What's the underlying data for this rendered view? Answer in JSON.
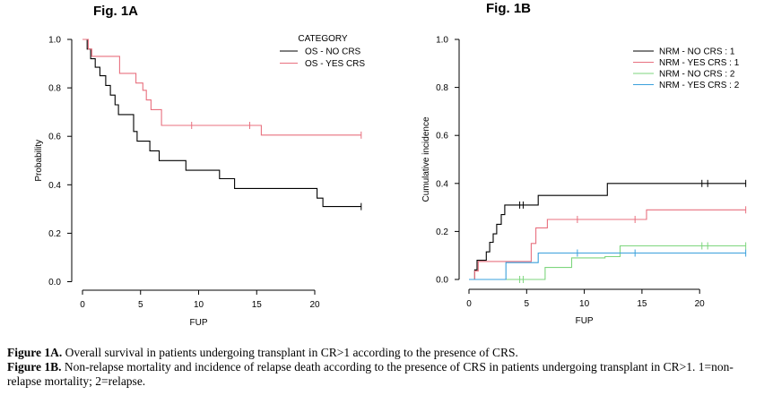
{
  "figures": {
    "fig1a_title": "Fig. 1A",
    "fig1b_title": "Fig. 1B"
  },
  "caption": {
    "line1_label": "Figure 1A.",
    "line1_text": " Overall survival in patients undergoing transplant in CR>1 according to the presence of CRS.",
    "line2_label": "Figure 1B.",
    "line2_text": " Non-relapse mortality and incidence of relapse death according to the presence of CRS in patients undergoing transplant in CR>1. 1=non-relapse mortality; 2=relapse."
  },
  "chart_data": [
    {
      "id": "fig1a",
      "type": "line",
      "step": true,
      "title": "",
      "xlabel": "FUP",
      "ylabel": "Probability",
      "xlim": [
        0,
        24.5
      ],
      "ylim": [
        0,
        1.0
      ],
      "xticks": [
        0,
        5,
        10,
        15,
        20
      ],
      "yticks": [
        0.0,
        0.2,
        0.4,
        0.6,
        0.8,
        1.0
      ],
      "ytick_labels": [
        "0.0",
        "0.2",
        "0.4",
        "0.6",
        "0.8",
        "1.0"
      ],
      "legend": {
        "title": "CATEGORY",
        "position": "top-right"
      },
      "series": [
        {
          "name": "OS - NO CRS",
          "color": "#000000",
          "points": [
            [
              0,
              1.0
            ],
            [
              0.4,
              1.0
            ],
            [
              0.4,
              0.96
            ],
            [
              0.7,
              0.96
            ],
            [
              0.7,
              0.92
            ],
            [
              1.1,
              0.92
            ],
            [
              1.1,
              0.885
            ],
            [
              1.5,
              0.885
            ],
            [
              1.5,
              0.85
            ],
            [
              2.0,
              0.85
            ],
            [
              2.0,
              0.81
            ],
            [
              2.4,
              0.81
            ],
            [
              2.4,
              0.77
            ],
            [
              2.8,
              0.77
            ],
            [
              2.8,
              0.73
            ],
            [
              3.1,
              0.73
            ],
            [
              3.1,
              0.69
            ],
            [
              4.4,
              0.69
            ],
            [
              4.4,
              0.62
            ],
            [
              4.7,
              0.62
            ],
            [
              4.7,
              0.58
            ],
            [
              5.8,
              0.58
            ],
            [
              5.8,
              0.54
            ],
            [
              6.6,
              0.54
            ],
            [
              6.6,
              0.5
            ],
            [
              8.9,
              0.5
            ],
            [
              8.9,
              0.46
            ],
            [
              11.8,
              0.46
            ],
            [
              11.8,
              0.425
            ],
            [
              13.1,
              0.425
            ],
            [
              13.1,
              0.385
            ],
            [
              20.2,
              0.385
            ],
            [
              20.2,
              0.345
            ],
            [
              20.7,
              0.345
            ],
            [
              20.7,
              0.31
            ],
            [
              24.0,
              0.31
            ]
          ],
          "censored": [
            [
              24.0,
              0.31
            ]
          ]
        },
        {
          "name": "OS - YES CRS",
          "color": "#e8707f",
          "points": [
            [
              0,
              1.0
            ],
            [
              0.5,
              1.0
            ],
            [
              0.5,
              0.96
            ],
            [
              0.8,
              0.96
            ],
            [
              0.8,
              0.93
            ],
            [
              3.2,
              0.93
            ],
            [
              3.2,
              0.86
            ],
            [
              4.6,
              0.86
            ],
            [
              4.6,
              0.82
            ],
            [
              5.2,
              0.82
            ],
            [
              5.2,
              0.79
            ],
            [
              5.5,
              0.79
            ],
            [
              5.5,
              0.75
            ],
            [
              5.9,
              0.75
            ],
            [
              5.9,
              0.71
            ],
            [
              6.8,
              0.71
            ],
            [
              6.8,
              0.645
            ],
            [
              15.4,
              0.645
            ],
            [
              15.4,
              0.605
            ],
            [
              24.0,
              0.605
            ]
          ],
          "censored": [
            [
              9.4,
              0.645
            ],
            [
              14.4,
              0.645
            ],
            [
              24.0,
              0.605
            ]
          ]
        }
      ]
    },
    {
      "id": "fig1b",
      "type": "line",
      "step": true,
      "title": "",
      "xlabel": "FUP",
      "ylabel": "Cumulative incidence",
      "xlim": [
        0,
        24.5
      ],
      "ylim": [
        0,
        1.0
      ],
      "xticks": [
        0,
        5,
        10,
        15,
        20
      ],
      "yticks": [
        0.0,
        0.2,
        0.4,
        0.6,
        0.8,
        1.0
      ],
      "ytick_labels": [
        "0.0",
        "0.2",
        "0.4",
        "0.6",
        "0.8",
        "1.0"
      ],
      "legend": {
        "title": "",
        "position": "top-right"
      },
      "series": [
        {
          "name": "NRM - NO CRS : 1",
          "color": "#000000",
          "points": [
            [
              0,
              0.0
            ],
            [
              0.5,
              0.0
            ],
            [
              0.5,
              0.04
            ],
            [
              0.7,
              0.04
            ],
            [
              0.7,
              0.08
            ],
            [
              1.5,
              0.08
            ],
            [
              1.5,
              0.115
            ],
            [
              1.8,
              0.115
            ],
            [
              1.8,
              0.155
            ],
            [
              2.1,
              0.155
            ],
            [
              2.1,
              0.19
            ],
            [
              2.4,
              0.19
            ],
            [
              2.4,
              0.23
            ],
            [
              2.8,
              0.23
            ],
            [
              2.8,
              0.27
            ],
            [
              3.1,
              0.27
            ],
            [
              3.1,
              0.31
            ],
            [
              4.6,
              0.31
            ],
            [
              4.6,
              0.31
            ],
            [
              6.0,
              0.31
            ],
            [
              6.0,
              0.35
            ],
            [
              12.0,
              0.35
            ],
            [
              12.0,
              0.4
            ],
            [
              24.0,
              0.4
            ]
          ],
          "censored": [
            [
              4.4,
              0.31
            ],
            [
              4.7,
              0.31
            ],
            [
              20.2,
              0.4
            ],
            [
              20.7,
              0.4
            ],
            [
              24.0,
              0.4
            ]
          ]
        },
        {
          "name": "NRM - YES CRS : 1",
          "color": "#e8707f",
          "points": [
            [
              0,
              0.0
            ],
            [
              0.5,
              0.0
            ],
            [
              0.5,
              0.035
            ],
            [
              0.8,
              0.035
            ],
            [
              0.8,
              0.075
            ],
            [
              5.4,
              0.075
            ],
            [
              5.4,
              0.15
            ],
            [
              5.8,
              0.15
            ],
            [
              5.8,
              0.215
            ],
            [
              6.8,
              0.215
            ],
            [
              6.8,
              0.25
            ],
            [
              15.4,
              0.25
            ],
            [
              15.4,
              0.29
            ],
            [
              24.0,
              0.29
            ]
          ],
          "censored": [
            [
              9.4,
              0.25
            ],
            [
              14.4,
              0.25
            ],
            [
              24.0,
              0.29
            ]
          ]
        },
        {
          "name": "NRM - NO CRS : 2",
          "color": "#7ed67e",
          "points": [
            [
              0,
              0.0
            ],
            [
              6.6,
              0.0
            ],
            [
              6.6,
              0.05
            ],
            [
              8.9,
              0.05
            ],
            [
              8.9,
              0.09
            ],
            [
              11.8,
              0.09
            ],
            [
              11.8,
              0.095
            ],
            [
              13.1,
              0.095
            ],
            [
              13.1,
              0.14
            ],
            [
              24.0,
              0.14
            ]
          ],
          "censored": [
            [
              4.4,
              0.0
            ],
            [
              4.7,
              0.0
            ],
            [
              20.2,
              0.14
            ],
            [
              20.7,
              0.14
            ],
            [
              24.0,
              0.14
            ]
          ]
        },
        {
          "name": "NRM - YES CRS : 2",
          "color": "#3aa0dc",
          "points": [
            [
              0,
              0.0
            ],
            [
              3.2,
              0.0
            ],
            [
              3.2,
              0.07
            ],
            [
              6.0,
              0.07
            ],
            [
              6.0,
              0.11
            ],
            [
              24.0,
              0.11
            ]
          ],
          "censored": [
            [
              9.4,
              0.11
            ],
            [
              14.4,
              0.11
            ],
            [
              24.0,
              0.11
            ]
          ]
        }
      ]
    }
  ]
}
